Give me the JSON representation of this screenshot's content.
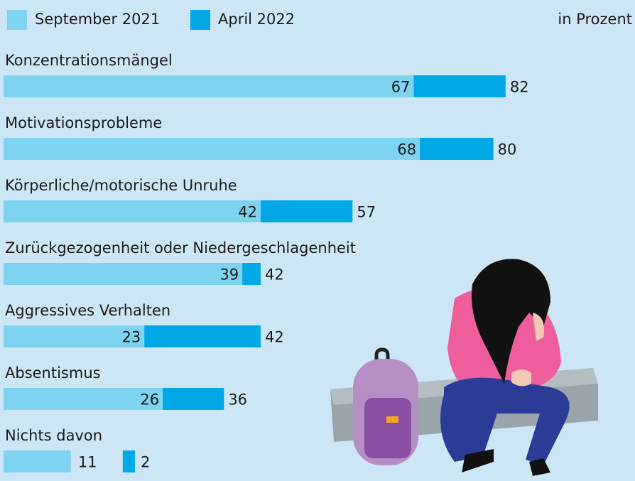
{
  "chart_data": {
    "type": "bar",
    "unit_note": "in Prozent",
    "categories": [
      "Konzentrationsmängel",
      "Motivationsprobleme",
      "Körperliche/motorische Unruhe",
      "Zurückgezogenheit oder Niedergeschlagenheit",
      "Aggressives Verhalten",
      "Absentismus",
      "Nichts davon"
    ],
    "series": [
      {
        "name": "September 2021",
        "color": "#7dd3f0",
        "values": [
          67,
          68,
          42,
          39,
          23,
          26,
          11
        ]
      },
      {
        "name": "April 2022",
        "color": "#00a9e6",
        "values": [
          82,
          80,
          57,
          42,
          42,
          36,
          2
        ]
      }
    ]
  }
}
